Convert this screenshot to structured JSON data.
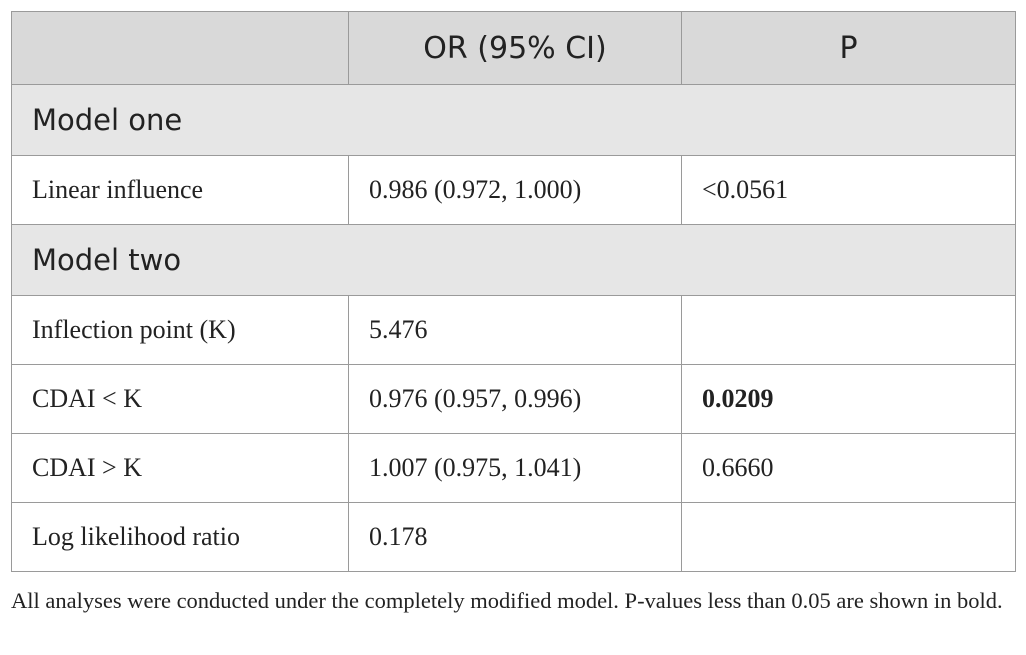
{
  "table": {
    "header": {
      "col1": "",
      "col2": "OR (95% CI)",
      "col3": "P"
    },
    "sections": [
      {
        "title": "Model one",
        "rows": [
          {
            "label": "Linear influence",
            "or_ci": "0.986 (0.972, 1.000)",
            "p": "<0.0561",
            "p_bold": false
          }
        ]
      },
      {
        "title": "Model two",
        "rows": [
          {
            "label": "Inflection point (K)",
            "or_ci": "5.476",
            "p": "",
            "p_bold": false
          },
          {
            "label": "CDAI < K",
            "or_ci": "0.976 (0.957, 0.996)",
            "p": "0.0209",
            "p_bold": true
          },
          {
            "label": "CDAI > K",
            "or_ci": "1.007 (0.975, 1.041)",
            "p": "0.6660",
            "p_bold": false
          },
          {
            "label": "Log likelihood ratio",
            "or_ci": "0.178",
            "p": "",
            "p_bold": false
          }
        ]
      }
    ]
  },
  "footnote": "All analyses were conducted under the completely modified model. P-values less than 0.05 are shown in bold.",
  "colors": {
    "header_bg": "#d9d9d9",
    "section_bg": "#e6e6e6",
    "border": "#9a9a9a",
    "text": "#222222"
  }
}
